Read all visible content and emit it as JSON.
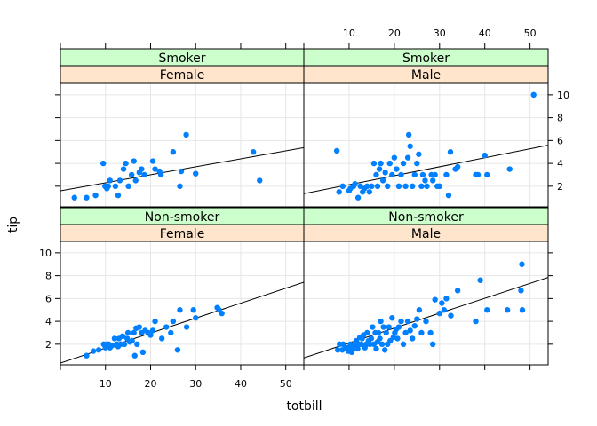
{
  "chart_data": {
    "type": "scatter",
    "xlabel": "totbill",
    "ylabel": "tip",
    "xlim": [
      0,
      54
    ],
    "ylim": [
      0.2,
      11
    ],
    "x_ticks": [
      10,
      20,
      30,
      40,
      50
    ],
    "y_ticks": [
      2,
      4,
      6,
      8,
      10
    ],
    "grid": true,
    "colors": {
      "points": "#0080ff",
      "strip_outer": "#ccffcc",
      "strip_inner": "#ffe5cc",
      "grid": "#e6e6e6",
      "frame": "#000000"
    },
    "panels": [
      {
        "strips": [
          "Non-smoker",
          "Female"
        ],
        "line": {
          "intercept": 0.35,
          "slope": 0.131
        },
        "points": [
          [
            5.8,
            1.0
          ],
          [
            7.3,
            1.4
          ],
          [
            8.5,
            1.5
          ],
          [
            9.6,
            2.0
          ],
          [
            10.0,
            1.7
          ],
          [
            10.3,
            2.0
          ],
          [
            10.7,
            2.0
          ],
          [
            11.0,
            1.7
          ],
          [
            11.5,
            1.9
          ],
          [
            12.0,
            2.5
          ],
          [
            12.5,
            2.0
          ],
          [
            12.8,
            1.8
          ],
          [
            13.0,
            2.5
          ],
          [
            13.4,
            2.0
          ],
          [
            13.8,
            2.7
          ],
          [
            14.2,
            2.0
          ],
          [
            14.8,
            2.5
          ],
          [
            15.0,
            3.0
          ],
          [
            15.4,
            2.2
          ],
          [
            15.9,
            2.3
          ],
          [
            16.3,
            3.0
          ],
          [
            16.5,
            1.0
          ],
          [
            16.8,
            3.4
          ],
          [
            17.0,
            2.0
          ],
          [
            17.5,
            3.5
          ],
          [
            18.0,
            3.0
          ],
          [
            18.3,
            1.3
          ],
          [
            18.8,
            3.2
          ],
          [
            19.5,
            3.0
          ],
          [
            20.0,
            2.8
          ],
          [
            20.5,
            3.2
          ],
          [
            21.0,
            4.0
          ],
          [
            22.5,
            2.5
          ],
          [
            23.5,
            3.5
          ],
          [
            24.5,
            3.0
          ],
          [
            25.0,
            4.0
          ],
          [
            26.0,
            1.5
          ],
          [
            26.5,
            5.0
          ],
          [
            28.0,
            3.5
          ],
          [
            29.5,
            5.0
          ],
          [
            30.0,
            4.3
          ],
          [
            34.8,
            5.2
          ],
          [
            35.2,
            5.0
          ],
          [
            35.8,
            4.7
          ]
        ]
      },
      {
        "strips": [
          "Non-smoker",
          "Male"
        ],
        "line": {
          "intercept": 0.8,
          "slope": 0.1305
        },
        "points": [
          [
            7.5,
            1.5
          ],
          [
            7.9,
            2.0
          ],
          [
            8.5,
            1.5
          ],
          [
            8.7,
            2.0
          ],
          [
            9.3,
            1.7
          ],
          [
            9.8,
            1.4
          ],
          [
            10.2,
            1.7
          ],
          [
            10.3,
            2.0
          ],
          [
            10.6,
            1.3
          ],
          [
            11.0,
            1.6
          ],
          [
            11.3,
            1.9
          ],
          [
            11.6,
            2.3
          ],
          [
            11.9,
            1.6
          ],
          [
            12.2,
            2.0
          ],
          [
            12.4,
            2.6
          ],
          [
            12.7,
            2.0
          ],
          [
            12.9,
            2.5
          ],
          [
            13.2,
            2.8
          ],
          [
            13.5,
            1.7
          ],
          [
            13.8,
            2.0
          ],
          [
            14.0,
            3.0
          ],
          [
            14.3,
            2.3
          ],
          [
            14.6,
            2.0
          ],
          [
            14.9,
            2.5
          ],
          [
            15.2,
            3.5
          ],
          [
            15.5,
            2.0
          ],
          [
            15.8,
            3.0
          ],
          [
            16.0,
            1.6
          ],
          [
            16.3,
            2.2
          ],
          [
            16.5,
            3.0
          ],
          [
            16.8,
            2.5
          ],
          [
            17.0,
            4.0
          ],
          [
            17.3,
            2.0
          ],
          [
            17.6,
            3.5
          ],
          [
            17.9,
            1.5
          ],
          [
            18.2,
            3.0
          ],
          [
            18.5,
            2.0
          ],
          [
            18.8,
            3.5
          ],
          [
            19.1,
            2.3
          ],
          [
            19.5,
            4.3
          ],
          [
            19.8,
            2.6
          ],
          [
            20.1,
            3.0
          ],
          [
            20.4,
            3.3
          ],
          [
            20.7,
            2.5
          ],
          [
            21.0,
            3.5
          ],
          [
            21.5,
            4.0
          ],
          [
            22.0,
            2.0
          ],
          [
            22.5,
            3.0
          ],
          [
            23.0,
            4.0
          ],
          [
            23.5,
            3.2
          ],
          [
            24.0,
            2.5
          ],
          [
            24.5,
            3.6
          ],
          [
            25.0,
            4.2
          ],
          [
            25.5,
            5.0
          ],
          [
            26.0,
            3.0
          ],
          [
            27.0,
            4.0
          ],
          [
            28.0,
            3.0
          ],
          [
            28.5,
            2.0
          ],
          [
            29.0,
            5.9
          ],
          [
            30.0,
            4.7
          ],
          [
            30.5,
            5.6
          ],
          [
            31.0,
            5.0
          ],
          [
            31.5,
            6.0
          ],
          [
            32.5,
            4.5
          ],
          [
            34.0,
            6.7
          ],
          [
            38.0,
            4.0
          ],
          [
            39.0,
            7.6
          ],
          [
            40.5,
            5.0
          ],
          [
            45.0,
            5.0
          ],
          [
            48.0,
            6.7
          ],
          [
            48.2,
            9.0
          ],
          [
            48.3,
            5.0
          ]
        ]
      },
      {
        "strips": [
          "Smoker",
          "Female"
        ],
        "line": {
          "intercept": 1.6,
          "slope": 0.07
        },
        "points": [
          [
            3.1,
            1.0
          ],
          [
            5.8,
            1.0
          ],
          [
            7.8,
            1.2
          ],
          [
            9.5,
            4.0
          ],
          [
            9.9,
            2.0
          ],
          [
            10.3,
            1.8
          ],
          [
            10.6,
            2.0
          ],
          [
            11.0,
            2.5
          ],
          [
            12.2,
            2.0
          ],
          [
            12.8,
            1.2
          ],
          [
            13.2,
            2.5
          ],
          [
            14.0,
            3.5
          ],
          [
            14.5,
            4.0
          ],
          [
            15.1,
            2.0
          ],
          [
            15.8,
            3.0
          ],
          [
            16.3,
            4.2
          ],
          [
            16.7,
            2.5
          ],
          [
            17.5,
            3.2
          ],
          [
            18.0,
            3.5
          ],
          [
            18.6,
            3.0
          ],
          [
            20.5,
            4.2
          ],
          [
            21.0,
            3.5
          ],
          [
            22.0,
            3.3
          ],
          [
            22.3,
            3.0
          ],
          [
            25.0,
            5.0
          ],
          [
            26.5,
            2.0
          ],
          [
            26.8,
            3.3
          ],
          [
            27.9,
            6.5
          ],
          [
            30.0,
            3.1
          ],
          [
            42.8,
            5.0
          ],
          [
            44.2,
            2.5
          ]
        ]
      },
      {
        "strips": [
          "Smoker",
          "Male"
        ],
        "line": {
          "intercept": 1.35,
          "slope": 0.0785
        },
        "points": [
          [
            7.3,
            5.1
          ],
          [
            7.8,
            1.5
          ],
          [
            8.6,
            2.0
          ],
          [
            10.0,
            1.6
          ],
          [
            10.3,
            1.8
          ],
          [
            11.0,
            2.0
          ],
          [
            11.3,
            2.2
          ],
          [
            12.0,
            1.0
          ],
          [
            12.5,
            2.0
          ],
          [
            13.0,
            1.5
          ],
          [
            13.4,
            1.8
          ],
          [
            14.0,
            2.0
          ],
          [
            14.5,
            1.5
          ],
          [
            15.0,
            2.0
          ],
          [
            15.5,
            4.0
          ],
          [
            16.0,
            3.0
          ],
          [
            16.3,
            2.0
          ],
          [
            16.7,
            3.5
          ],
          [
            17.0,
            4.0
          ],
          [
            17.5,
            2.5
          ],
          [
            18.0,
            3.2
          ],
          [
            18.5,
            2.0
          ],
          [
            19.0,
            4.0
          ],
          [
            19.5,
            3.0
          ],
          [
            20.0,
            4.5
          ],
          [
            20.5,
            3.5
          ],
          [
            21.0,
            2.0
          ],
          [
            21.5,
            3.0
          ],
          [
            22.0,
            4.0
          ],
          [
            22.5,
            2.0
          ],
          [
            23.0,
            4.5
          ],
          [
            23.2,
            6.5
          ],
          [
            23.5,
            5.5
          ],
          [
            24.0,
            2.0
          ],
          [
            24.5,
            3.0
          ],
          [
            25.0,
            4.0
          ],
          [
            25.4,
            4.8
          ],
          [
            26.0,
            2.0
          ],
          [
            26.3,
            3.0
          ],
          [
            26.8,
            2.5
          ],
          [
            27.2,
            2.0
          ],
          [
            28.2,
            3.0
          ],
          [
            28.5,
            2.5
          ],
          [
            29.0,
            3.0
          ],
          [
            29.5,
            2.0
          ],
          [
            30.0,
            2.0
          ],
          [
            31.5,
            3.0
          ],
          [
            32.0,
            1.2
          ],
          [
            32.4,
            5.0
          ],
          [
            33.5,
            3.5
          ],
          [
            34.0,
            3.7
          ],
          [
            38.0,
            3.0
          ],
          [
            38.5,
            3.0
          ],
          [
            40.0,
            4.7
          ],
          [
            40.5,
            3.0
          ],
          [
            45.5,
            3.5
          ],
          [
            50.8,
            10.0
          ]
        ]
      }
    ]
  }
}
